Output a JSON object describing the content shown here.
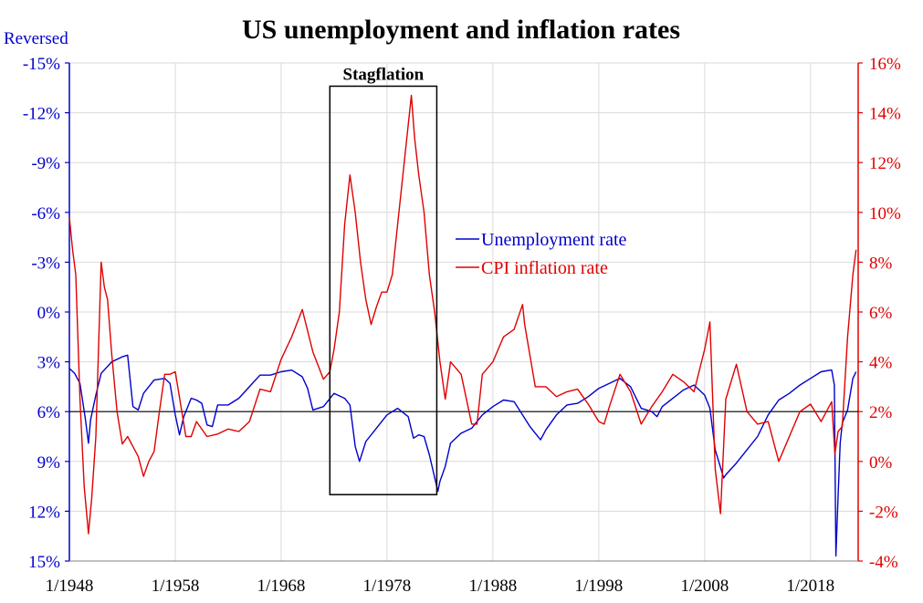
{
  "chart_data": {
    "type": "line",
    "title": "US unemployment and inflation rates",
    "left_axis": {
      "label": "Reversed",
      "color": "#0000cc",
      "reversed": true,
      "ylim": [
        -15,
        15
      ],
      "ticks": [
        -15,
        -12,
        -9,
        -6,
        -3,
        0,
        3,
        6,
        9,
        12,
        15
      ],
      "tick_labels": [
        "-15%",
        "-12%",
        "-9%",
        "-6%",
        "-3%",
        "0%",
        "3%",
        "6%",
        "9%",
        "12%",
        "15%"
      ]
    },
    "right_axis": {
      "color": "#e00000",
      "ylim": [
        -4,
        16
      ],
      "ticks": [
        -4,
        -2,
        0,
        2,
        4,
        6,
        8,
        10,
        12,
        14,
        16
      ],
      "tick_labels": [
        "-4%",
        "-2%",
        "0%",
        "2%",
        "4%",
        "6%",
        "8%",
        "10%",
        "12%",
        "14%",
        "16%"
      ]
    },
    "x_axis": {
      "xlim": [
        1948,
        2022.5
      ],
      "ticks": [
        1948,
        1958,
        1968,
        1978,
        1988,
        1998,
        2008,
        2018
      ],
      "tick_labels": [
        "1/1948",
        "1/1958",
        "1/1968",
        "1/1978",
        "1/1988",
        "1/1998",
        "1/2008",
        "1/2018"
      ]
    },
    "reference_line": {
      "axis": "left",
      "value": 6
    },
    "annotation": {
      "label": "Stagflation",
      "x_start": 1972.6,
      "x_end": 1982.7,
      "y_top_left": -13.6,
      "y_bottom_left": 11
    },
    "legend": {
      "position": "center-right",
      "entries": [
        "Unemployment rate",
        "CPI inflation rate"
      ]
    },
    "series": [
      {
        "name": "Unemployment rate",
        "axis": "left",
        "color": "#0000cc",
        "x": [
          1948.0,
          1948.5,
          1949.0,
          1949.5,
          1949.8,
          1950.0,
          1950.5,
          1951.0,
          1952.0,
          1953.0,
          1953.5,
          1954.0,
          1954.5,
          1955.0,
          1956.0,
          1957.0,
          1957.5,
          1958.0,
          1958.4,
          1958.8,
          1959.5,
          1960.0,
          1960.5,
          1961.0,
          1961.5,
          1962.0,
          1963.0,
          1964.0,
          1965.0,
          1966.0,
          1967.0,
          1968.0,
          1969.0,
          1970.0,
          1970.5,
          1971.0,
          1972.0,
          1973.0,
          1974.0,
          1974.5,
          1975.0,
          1975.4,
          1976.0,
          1977.0,
          1978.0,
          1979.0,
          1980.0,
          1980.5,
          1981.0,
          1981.5,
          1982.0,
          1982.8,
          1983.0,
          1983.5,
          1984.0,
          1985.0,
          1986.0,
          1987.0,
          1988.0,
          1989.0,
          1990.0,
          1991.0,
          1991.5,
          1992.0,
          1992.5,
          1993.0,
          1994.0,
          1995.0,
          1996.0,
          1997.0,
          1998.0,
          1999.0,
          2000.0,
          2001.0,
          2002.0,
          2003.0,
          2003.5,
          2004.0,
          2005.0,
          2006.0,
          2007.0,
          2008.0,
          2008.5,
          2009.0,
          2009.8,
          2010.0,
          2011.0,
          2012.0,
          2013.0,
          2014.0,
          2015.0,
          2016.0,
          2017.0,
          2018.0,
          2019.0,
          2019.9,
          2020.0,
          2020.25,
          2020.4,
          2020.6,
          2020.8,
          2021.0,
          2021.5,
          2022.0,
          2022.3
        ],
        "values": [
          3.4,
          3.7,
          4.3,
          6.4,
          7.9,
          6.5,
          5.0,
          3.7,
          3.0,
          2.7,
          2.6,
          5.7,
          5.9,
          4.9,
          4.1,
          4.0,
          4.3,
          6.2,
          7.4,
          6.3,
          5.2,
          5.3,
          5.5,
          6.8,
          6.9,
          5.6,
          5.6,
          5.2,
          4.5,
          3.8,
          3.8,
          3.6,
          3.5,
          3.9,
          4.6,
          5.9,
          5.7,
          4.9,
          5.2,
          5.6,
          8.1,
          9.0,
          7.8,
          7.0,
          6.2,
          5.8,
          6.3,
          7.6,
          7.4,
          7.5,
          8.6,
          10.8,
          10.2,
          9.3,
          7.9,
          7.3,
          7.0,
          6.2,
          5.7,
          5.3,
          5.4,
          6.4,
          6.9,
          7.3,
          7.7,
          7.1,
          6.2,
          5.6,
          5.5,
          5.1,
          4.6,
          4.3,
          4.0,
          4.5,
          5.8,
          6.0,
          6.3,
          5.7,
          5.2,
          4.7,
          4.4,
          5.0,
          5.8,
          8.3,
          10.0,
          9.8,
          9.1,
          8.3,
          7.5,
          6.2,
          5.3,
          4.9,
          4.4,
          4.0,
          3.6,
          3.5,
          3.5,
          4.4,
          14.7,
          11.1,
          7.9,
          6.7,
          5.9,
          4.0,
          3.6
        ]
      },
      {
        "name": "CPI inflation rate",
        "axis": "right",
        "color": "#e00000",
        "x": [
          1948.0,
          1948.3,
          1948.6,
          1949.0,
          1949.4,
          1949.8,
          1950.1,
          1950.5,
          1951.0,
          1951.3,
          1951.6,
          1952.0,
          1952.5,
          1953.0,
          1953.5,
          1954.0,
          1954.5,
          1955.0,
          1955.5,
          1956.0,
          1956.5,
          1957.0,
          1957.5,
          1958.0,
          1958.5,
          1959.0,
          1959.5,
          1960.0,
          1961.0,
          1962.0,
          1963.0,
          1964.0,
          1965.0,
          1966.0,
          1967.0,
          1968.0,
          1969.0,
          1970.0,
          1971.0,
          1972.0,
          1972.6,
          1973.0,
          1973.5,
          1974.0,
          1974.5,
          1975.0,
          1975.5,
          1976.0,
          1976.5,
          1977.0,
          1977.5,
          1978.0,
          1978.5,
          1979.0,
          1979.5,
          1980.0,
          1980.3,
          1980.6,
          1981.0,
          1981.5,
          1982.0,
          1982.5,
          1983.0,
          1983.5,
          1984.0,
          1985.0,
          1986.0,
          1986.5,
          1987.0,
          1988.0,
          1989.0,
          1990.0,
          1990.8,
          1991.0,
          1992.0,
          1993.0,
          1994.0,
          1995.0,
          1996.0,
          1997.0,
          1998.0,
          1998.5,
          1999.0,
          2000.0,
          2001.0,
          2002.0,
          2003.0,
          2004.0,
          2005.0,
          2006.0,
          2007.0,
          2008.0,
          2008.5,
          2009.0,
          2009.5,
          2010.0,
          2011.0,
          2012.0,
          2013.0,
          2014.0,
          2015.0,
          2016.0,
          2017.0,
          2018.0,
          2019.0,
          2020.0,
          2020.3,
          2020.6,
          2021.0,
          2021.5,
          2022.0,
          2022.3
        ],
        "values": [
          9.8,
          8.5,
          7.5,
          2.5,
          -1.0,
          -2.9,
          -1.5,
          1.0,
          8.0,
          7.0,
          6.5,
          4.3,
          2.0,
          0.7,
          1.0,
          0.6,
          0.2,
          -0.6,
          0.0,
          0.4,
          2.0,
          3.5,
          3.5,
          3.6,
          2.3,
          1.0,
          1.0,
          1.6,
          1.0,
          1.1,
          1.3,
          1.2,
          1.6,
          2.9,
          2.8,
          4.1,
          5.0,
          6.1,
          4.4,
          3.3,
          3.6,
          4.5,
          6.0,
          9.5,
          11.5,
          10.0,
          8.0,
          6.5,
          5.5,
          6.2,
          6.8,
          6.8,
          7.5,
          9.5,
          11.5,
          13.5,
          14.7,
          13.0,
          11.5,
          10.0,
          7.5,
          6.0,
          4.0,
          2.5,
          4.0,
          3.5,
          1.5,
          1.5,
          3.5,
          4.0,
          5.0,
          5.3,
          6.3,
          5.5,
          3.0,
          3.0,
          2.6,
          2.8,
          2.9,
          2.3,
          1.6,
          1.5,
          2.2,
          3.5,
          2.8,
          1.5,
          2.2,
          2.8,
          3.5,
          3.2,
          2.8,
          4.5,
          5.6,
          -0.3,
          -2.1,
          2.5,
          3.9,
          2.0,
          1.5,
          1.6,
          0.0,
          1.0,
          2.0,
          2.3,
          1.6,
          2.4,
          0.3,
          1.2,
          1.4,
          5.0,
          7.5,
          8.5
        ]
      }
    ]
  }
}
